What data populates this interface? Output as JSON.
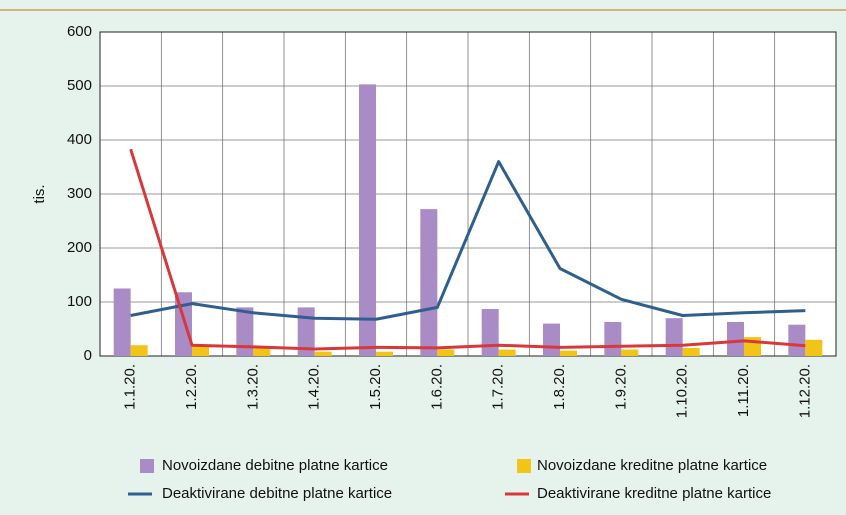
{
  "chart_data": {
    "type": "bar",
    "y_label": "tis.",
    "categories": [
      "1.1.20.",
      "1.2.20.",
      "1.3.20.",
      "1.4.20.",
      "1.5.20.",
      "1.6.20.",
      "1.7.20.",
      "1.8.20.",
      "1.9.20.",
      "1.10.20.",
      "1.11.20.",
      "1.12.20."
    ],
    "series": [
      {
        "name": "Novoizdane debitne platne kartice",
        "type": "bar",
        "color": "#a98bc6",
        "values": [
          125,
          118,
          90,
          90,
          503,
          272,
          87,
          60,
          63,
          70,
          63,
          58
        ]
      },
      {
        "name": "Novoizdane kreditne platne kartice",
        "type": "bar",
        "color": "#f2c418",
        "values": [
          20,
          18,
          14,
          8,
          8,
          12,
          12,
          10,
          12,
          15,
          35,
          30
        ]
      },
      {
        "name": "Deaktivirane debitne platne kartice",
        "type": "line",
        "color": "#2e5f8f",
        "values": [
          75,
          97,
          80,
          70,
          68,
          90,
          360,
          162,
          105,
          75,
          80,
          84
        ]
      },
      {
        "name": "Deaktivirane kreditne platne kartice",
        "type": "line",
        "color": "#d9383a",
        "values": [
          383,
          20,
          17,
          13,
          16,
          15,
          20,
          16,
          18,
          20,
          28,
          19
        ]
      }
    ],
    "ylim": [
      0,
      600
    ],
    "yticks": [
      0,
      100,
      200,
      300,
      400,
      500,
      600
    ],
    "grid": true
  }
}
